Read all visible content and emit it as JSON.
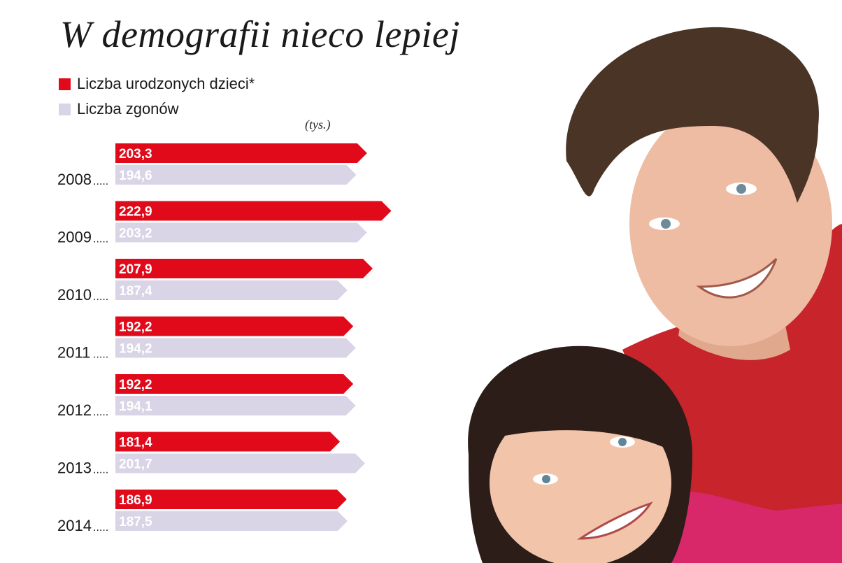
{
  "title": "W demografii nieco lepiej",
  "legend": {
    "births": "Liczba urodzonych dzieci*",
    "deaths": "Liczba zgonów"
  },
  "unit": "(tys.)",
  "colors": {
    "births": "#e10a1a",
    "deaths": "#d9d4e6"
  },
  "chart_data": {
    "type": "bar",
    "orientation": "horizontal",
    "categories": [
      "2008",
      "2009",
      "2010",
      "2011",
      "2012",
      "2013",
      "2014"
    ],
    "series": [
      {
        "name": "Liczba urodzonych dzieci*",
        "values": [
          203.3,
          222.9,
          207.9,
          192.2,
          192.2,
          181.4,
          186.9
        ],
        "labels": [
          "203,3",
          "222,9",
          "207,9",
          "192,2",
          "192,2",
          "181,4",
          "186,9"
        ]
      },
      {
        "name": "Liczba zgonów",
        "values": [
          194.6,
          203.2,
          187.4,
          194.2,
          194.1,
          201.7,
          187.5
        ],
        "labels": [
          "194,6",
          "203,2",
          "187,4",
          "194,2",
          "194,1",
          "201,7",
          "187,5"
        ]
      }
    ],
    "unit": "(tys.)",
    "grid": false,
    "legend_position": "top-left"
  },
  "photo": {
    "icon": "smiling-couple-photo"
  }
}
